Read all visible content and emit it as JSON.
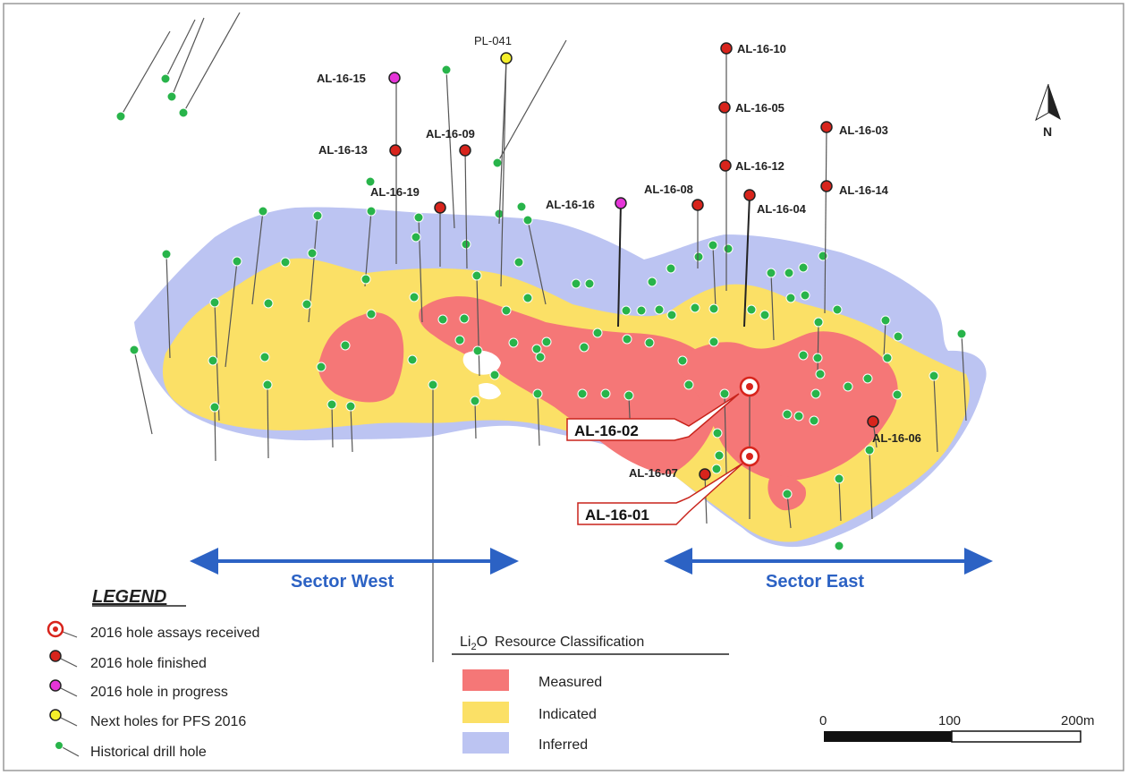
{
  "map": {
    "north_label": "N",
    "sectors": {
      "west": "Sector West",
      "east": "Sector East"
    },
    "assay_callouts": [
      "AL-16-02",
      "AL-16-01"
    ],
    "holes": [
      {
        "id": "PL-041",
        "status": "next"
      },
      {
        "id": "AL-16-10",
        "status": "finished"
      },
      {
        "id": "AL-16-05",
        "status": "finished"
      },
      {
        "id": "AL-16-03",
        "status": "finished"
      },
      {
        "id": "AL-16-15",
        "status": "in-progress"
      },
      {
        "id": "AL-16-13",
        "status": "finished"
      },
      {
        "id": "AL-16-09",
        "status": "finished"
      },
      {
        "id": "AL-16-12",
        "status": "finished"
      },
      {
        "id": "AL-16-14",
        "status": "finished"
      },
      {
        "id": "AL-16-19",
        "status": "finished"
      },
      {
        "id": "AL-16-16",
        "status": "in-progress"
      },
      {
        "id": "AL-16-08",
        "status": "finished"
      },
      {
        "id": "AL-16-04",
        "status": "finished"
      },
      {
        "id": "AL-16-06",
        "status": "finished"
      },
      {
        "id": "AL-16-07",
        "status": "finished"
      },
      {
        "id": "AL-16-02",
        "status": "assays-received"
      },
      {
        "id": "AL-16-01",
        "status": "assays-received"
      }
    ]
  },
  "legend": {
    "title": "LEGEND",
    "items": [
      {
        "label": "2016 hole assays received",
        "icon": "target-icon",
        "color": "#d8241c"
      },
      {
        "label": "2016 hole finished",
        "icon": "red-dot-icon",
        "color": "#d8241c"
      },
      {
        "label": "2016 hole in progress",
        "icon": "magenta-dot-icon",
        "color": "#e535d8"
      },
      {
        "label": "Next holes for PFS 2016",
        "icon": "yellow-dot-icon",
        "color": "#f4ef2a"
      },
      {
        "label": "Historical drill hole",
        "icon": "green-dot-icon",
        "color": "#28b44a"
      }
    ]
  },
  "classification": {
    "title_main": "Li",
    "title_sub": "2",
    "title_end": "O",
    "title_rest": "Resource Classification",
    "items": [
      {
        "label": "Measured",
        "color": "#f57777"
      },
      {
        "label": "Indicated",
        "color": "#fbe066"
      },
      {
        "label": "Inferred",
        "color": "#bcc4f2"
      }
    ]
  },
  "scale": {
    "ticks": [
      "0",
      "100",
      "200m"
    ]
  }
}
